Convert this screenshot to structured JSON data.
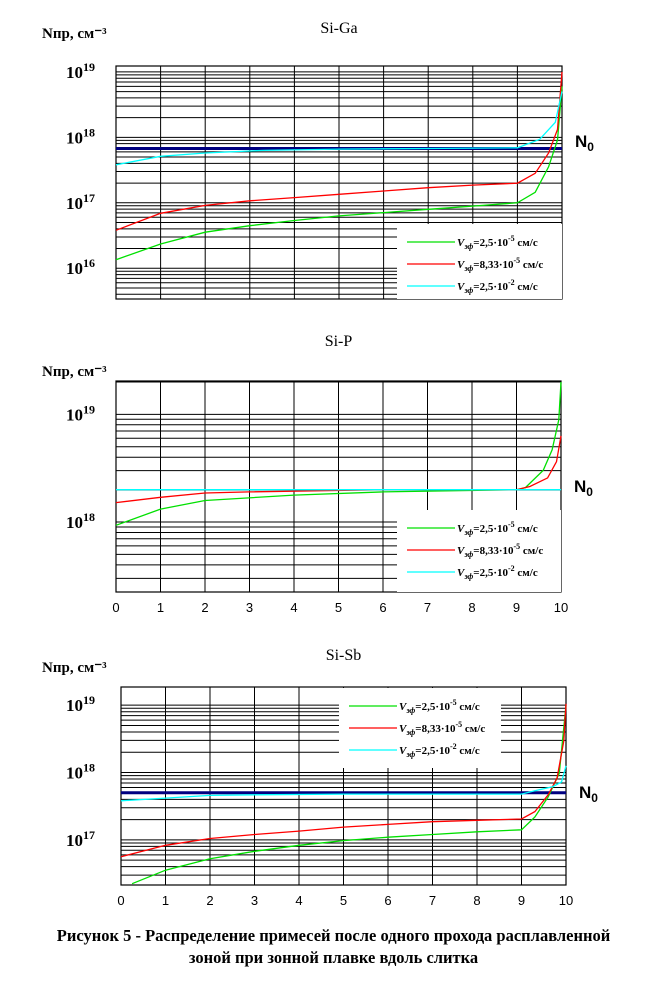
{
  "caption": {
    "line1": "Рисунок 5 - Распределение примесей после одного прохода расплавленной",
    "line2": "зоной при зонной плавке вдоль слитка"
  },
  "colors": {
    "green": "#00e000",
    "red": "#ff0000",
    "cyan": "#00ffff",
    "navy": "#000080",
    "black": "#000000"
  },
  "chart_data": [
    {
      "type": "line",
      "title": "Si-Ga",
      "ylabel": "Nпр, см⁻³",
      "xlabel": "",
      "yscale": "log",
      "xlim": [
        0,
        10
      ],
      "ylim_log10": [
        15.53,
        19.09
      ],
      "yticks": [
        {
          "label": "10",
          "exp": "19",
          "log": 19
        },
        {
          "label": "10",
          "exp": "18",
          "log": 18
        },
        {
          "label": "10",
          "exp": "17",
          "log": 17
        },
        {
          "label": "10",
          "exp": "16",
          "log": 16
        }
      ],
      "xticks": [],
      "grid": true,
      "legend": "bottom-right",
      "n0_label": "N",
      "n0_sub": "0",
      "n0_log10": 17.83,
      "n0_color": "navy",
      "series": [
        {
          "name": "Vэф=2,5·10⁻⁵ см/с",
          "v": "V",
          "sub": "эф",
          "text": "=2,5·10",
          "exp": "-5",
          "unit": " см/с",
          "color": "green",
          "x": [
            0,
            1,
            2,
            3,
            4,
            5,
            6,
            7,
            8,
            9,
            9.4,
            9.7,
            9.9,
            10
          ],
          "log10": [
            16.13,
            16.37,
            16.55,
            16.65,
            16.73,
            16.8,
            16.85,
            16.9,
            16.95,
            17.0,
            17.16,
            17.55,
            17.96,
            18.78
          ]
        },
        {
          "name": "Vэф=8,33·10⁻⁵ см/с",
          "v": "V",
          "sub": "эф",
          "text": "=8,33·10",
          "exp": "-5",
          "unit": " см/с",
          "color": "red",
          "x": [
            0,
            1,
            2,
            3,
            4,
            5,
            6,
            7,
            8,
            9,
            9.4,
            9.7,
            9.9,
            10
          ],
          "log10": [
            16.58,
            16.84,
            16.96,
            17.03,
            17.08,
            17.13,
            17.18,
            17.23,
            17.27,
            17.3,
            17.45,
            17.76,
            18.12,
            19.0
          ]
        },
        {
          "name": "Vэф=2,5·10⁻² см/с",
          "v": "V",
          "sub": "эф",
          "text": "=2,5·10",
          "exp": "-2",
          "unit": " см/с",
          "color": "cyan",
          "x": [
            0,
            1,
            2,
            3.3,
            5,
            7,
            9,
            9.5,
            9.85,
            10
          ],
          "log10": [
            17.58,
            17.71,
            17.76,
            17.8,
            17.82,
            17.83,
            17.84,
            17.97,
            18.23,
            18.7
          ]
        }
      ]
    },
    {
      "type": "line",
      "title": "Si-P",
      "ylabel": "Nпр, см⁻³",
      "xlabel": "",
      "yscale": "log",
      "xlim": [
        0,
        10
      ],
      "ylim_log10": [
        17.35,
        19.31
      ],
      "yticks": [
        {
          "label": "10",
          "exp": "19",
          "log": 19
        },
        {
          "label": "10",
          "exp": "18",
          "log": 18
        }
      ],
      "xticks": [
        "0",
        "1",
        "2",
        "3",
        "4",
        "5",
        "6",
        "7",
        "8",
        "9",
        "10"
      ],
      "grid": true,
      "legend": "bottom-right",
      "n0_label": "N",
      "n0_sub": "0",
      "n0_log10": 18.3,
      "n0_color": "black",
      "series": [
        {
          "name": "Vэф=2,5·10⁻⁵ см/с",
          "v": "V",
          "sub": "эф",
          "text": "=2,5·10",
          "exp": "-5",
          "unit": " см/с",
          "color": "green",
          "x": [
            0,
            1,
            2,
            4,
            6,
            9,
            9.2,
            9.6,
            9.8,
            9.95,
            10
          ],
          "log10": [
            17.97,
            18.12,
            18.2,
            18.25,
            18.28,
            18.3,
            18.32,
            18.48,
            18.67,
            18.95,
            19.3
          ]
        },
        {
          "name": "Vэф=8,33·10⁻⁵ см/с",
          "v": "V",
          "sub": "эф",
          "text": "=8,33·10",
          "exp": "-5",
          "unit": " см/с",
          "color": "red",
          "x": [
            0,
            1,
            2,
            3,
            6,
            9,
            9.3,
            9.7,
            9.9,
            10
          ],
          "log10": [
            18.18,
            18.23,
            18.27,
            18.28,
            18.3,
            18.3,
            18.33,
            18.41,
            18.56,
            18.8
          ]
        },
        {
          "name": "Vэф=2,5·10⁻² см/с",
          "v": "V",
          "sub": "эф",
          "text": "=2,5·10",
          "exp": "-2",
          "unit": " см/с",
          "color": "cyan",
          "x": [
            0,
            10
          ],
          "log10": [
            18.3,
            18.3
          ]
        }
      ]
    },
    {
      "type": "line",
      "title": "Si-Sb",
      "ylabel": "Nпр, см⁻³",
      "xlabel": "",
      "yscale": "log",
      "xlim": [
        0,
        10
      ],
      "ylim_log10": [
        16.33,
        19.27
      ],
      "yticks": [
        {
          "label": "10",
          "exp": "19",
          "log": 19
        },
        {
          "label": "10",
          "exp": "18",
          "log": 18
        },
        {
          "label": "10",
          "exp": "17",
          "log": 17
        }
      ],
      "xticks": [
        "0",
        "1",
        "2",
        "3",
        "4",
        "5",
        "6",
        "7",
        "8",
        "9",
        "10"
      ],
      "grid": true,
      "legend": "top-center",
      "n0_label": "N",
      "n0_sub": "0",
      "n0_log10": 17.7,
      "n0_color": "navy",
      "series": [
        {
          "name": "Vэф=2,5·10⁻⁵ см/с",
          "v": "V",
          "sub": "эф",
          "text": "=2,5·10",
          "exp": "-5",
          "unit": " см/с",
          "color": "green",
          "x": [
            0.25,
            1,
            2,
            3,
            4,
            5,
            6,
            7,
            8,
            9,
            9.3,
            9.6,
            9.85,
            10
          ],
          "log10": [
            16.35,
            16.55,
            16.72,
            16.83,
            16.92,
            16.99,
            17.04,
            17.08,
            17.12,
            17.15,
            17.34,
            17.64,
            17.99,
            19.0
          ]
        },
        {
          "name": "Vэф=8,33·10⁻⁵ см/с",
          "v": "V",
          "sub": "эф",
          "text": "=8,33·10",
          "exp": "-5",
          "unit": " см/с",
          "color": "red",
          "x": [
            0,
            1,
            2,
            3,
            4,
            5,
            6,
            7,
            8,
            9,
            9.3,
            9.6,
            9.8,
            9.95,
            10
          ],
          "log10": [
            16.75,
            16.92,
            17.02,
            17.08,
            17.13,
            17.19,
            17.23,
            17.27,
            17.29,
            17.31,
            17.42,
            17.67,
            17.92,
            18.47,
            19.02
          ]
        },
        {
          "name": "Vэф=2,5·10⁻² см/с",
          "v": "V",
          "sub": "эф",
          "text": "=2,5·10",
          "exp": "-2",
          "unit": " см/с",
          "color": "cyan",
          "x": [
            0,
            1,
            2,
            3,
            5,
            9,
            9.3,
            9.7,
            9.9,
            10
          ],
          "log10": [
            17.58,
            17.62,
            17.66,
            17.67,
            17.68,
            17.68,
            17.73,
            17.79,
            17.86,
            18.1
          ]
        }
      ]
    }
  ]
}
